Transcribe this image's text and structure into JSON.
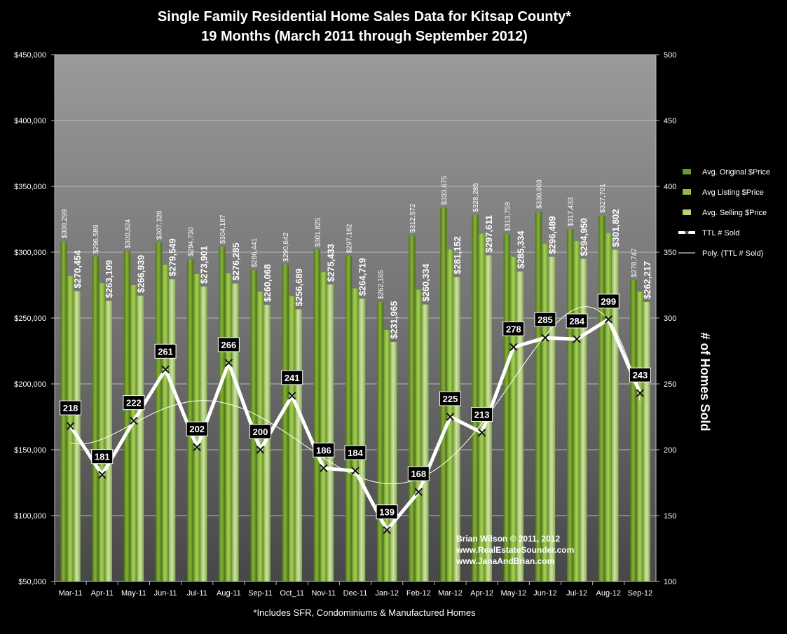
{
  "chart_data": {
    "type": "bar",
    "title_line1": "Single Family Residential Home Sales Data for Kitsap County*",
    "title_line2": "19 Months (March  2011 through September 2012)",
    "footnote": "*Includes SFR, Condominiums & Manufactured Homes",
    "y2label": "# of Homes Sold",
    "credit": [
      "Brian Wilson  © 2011, 2012",
      "www.RealEstateSounder.com",
      "www.JanaAndBrian.com"
    ],
    "categories": [
      "Mar-11",
      "Apr-11",
      "May-11",
      "Jun-11",
      "Jul-11",
      "Aug-11",
      "Sep-11",
      "Oct_11",
      "Nov-11",
      "Dec-11",
      "Jan-12",
      "Feb-12",
      "Mar-12",
      "Apr-12",
      "May-12",
      "Jun-12",
      "Jul-12",
      "Aug-12",
      "Sep-12"
    ],
    "ylim": [
      50000,
      450000
    ],
    "yticks": [
      "$50,000",
      "$100,000",
      "$150,000",
      "$200,000",
      "$250,000",
      "$300,000",
      "$350,000",
      "$400,000",
      "$450,000"
    ],
    "y2lim": [
      100,
      500
    ],
    "y2ticks": [
      "100",
      "150",
      "200",
      "250",
      "300",
      "350",
      "400",
      "450",
      "500"
    ],
    "grid": true,
    "legend_position": "right",
    "series": [
      {
        "name": "Avg. Original $Price",
        "kind": "bar",
        "color": "#6f9a2a",
        "values": [
          308299,
          296589,
          300824,
          307326,
          294730,
          304187,
          286441,
          290642,
          301825,
          297162,
          262165,
          312572,
          333675,
          328285,
          313759,
          330903,
          317433,
          327701,
          278747
        ],
        "labels": [
          "$308,299",
          "$296,589",
          "$300,824",
          "$307,326",
          "$294,730",
          "$304,187",
          "$286,441",
          "$290,642",
          "$301,825",
          "$297,162",
          "$262,165",
          "$312,572",
          "$333,675",
          "$328,285",
          "$313,759",
          "$330,903",
          "$317,433",
          "$327,701",
          "$278,747"
        ]
      },
      {
        "name": "Avg Listing $Price",
        "kind": "bar",
        "color": "#8fbd3d",
        "values": [
          282000,
          276500,
          275000,
          290500,
          283500,
          284000,
          270000,
          266500,
          285000,
          272500,
          241000,
          271500,
          302000,
          314000,
          296500,
          306500,
          308500,
          314500,
          270000
        ]
      },
      {
        "name": "Avg. Selling $Price",
        "kind": "bar",
        "color": "#b4d478",
        "values": [
          270454,
          263109,
          266939,
          279549,
          273901,
          276285,
          260068,
          256689,
          275433,
          264719,
          231965,
          260334,
          281152,
          297611,
          285334,
          296489,
          294950,
          301802,
          262217
        ],
        "labels": [
          "$270,454",
          "$263,109",
          "$266,939",
          "$279,549",
          "$273,901",
          "$276,285",
          "$260,068",
          "$256,689",
          "$275,433",
          "$264,719",
          "$231,965",
          "$260,334",
          "$281,152",
          "$297,611",
          "$285,334",
          "$296,489",
          "$294,950",
          "$301,802",
          "$262,217"
        ]
      },
      {
        "name": "TTL # Sold",
        "kind": "line",
        "axis": "right",
        "color": "#ffffff",
        "values": [
          218,
          181,
          222,
          261,
          202,
          266,
          200,
          241,
          186,
          184,
          139,
          168,
          225,
          213,
          278,
          285,
          284,
          299,
          243
        ],
        "labels": [
          "218",
          "181",
          "222",
          "261",
          "202",
          "266",
          "200",
          "241",
          "186",
          "184",
          "139",
          "168",
          "225",
          "213",
          "278",
          "285",
          "284",
          "299",
          "243"
        ]
      },
      {
        "name": "Poly. (TTL # Sold)",
        "kind": "trend",
        "axis": "right",
        "color": "#ffffff"
      }
    ]
  }
}
